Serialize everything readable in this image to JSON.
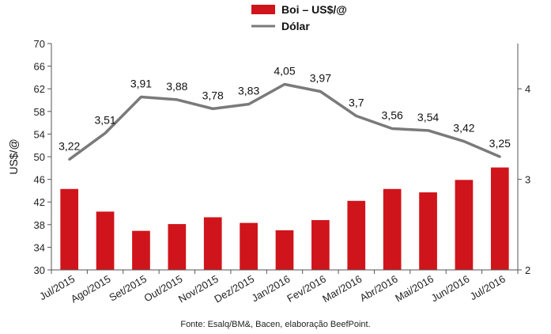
{
  "chart_data": {
    "type": "bar+line",
    "categories": [
      "Jul/2015",
      "Ago/2015",
      "Set/2015",
      "Out/2015",
      "Nov/2015",
      "Dez/2015",
      "Jan/2016",
      "Fev/2016",
      "Mar/2016",
      "Abr/2016",
      "Mai/2016",
      "Jun/2016",
      "Jul/2016"
    ],
    "series": [
      {
        "name": "Boi – US$/@",
        "type": "bar",
        "axis": "left",
        "color": "#d0141b",
        "values": [
          44.3,
          40.3,
          36.9,
          38.1,
          39.3,
          38.3,
          37.0,
          38.8,
          42.2,
          44.3,
          43.7,
          45.9,
          48.1
        ]
      },
      {
        "name": "Dólar",
        "type": "line",
        "axis": "right",
        "color": "#7a7a7a",
        "values": [
          3.22,
          3.51,
          3.91,
          3.88,
          3.78,
          3.83,
          4.05,
          3.97,
          3.7,
          3.56,
          3.54,
          3.42,
          3.25
        ],
        "labels": [
          "3,22",
          "3,51",
          "3,91",
          "3,88",
          "3,78",
          "3,83",
          "4,05",
          "3,97",
          "3,7",
          "3,56",
          "3,54",
          "3,42",
          "3,25"
        ]
      }
    ],
    "ylabel": "US$/@",
    "ylim": [
      30,
      70
    ],
    "yticks": [
      "30",
      "34",
      "38",
      "42",
      "46",
      "50",
      "54",
      "58",
      "62",
      "66",
      "70"
    ],
    "y2lim": [
      2,
      4.5
    ],
    "y2ticks": [
      "2",
      "3",
      "4"
    ],
    "legend_position": "top-center",
    "grid": false
  },
  "source": "Fonte: Esalq/BM&, Bacen, elaboração BeefPoint."
}
